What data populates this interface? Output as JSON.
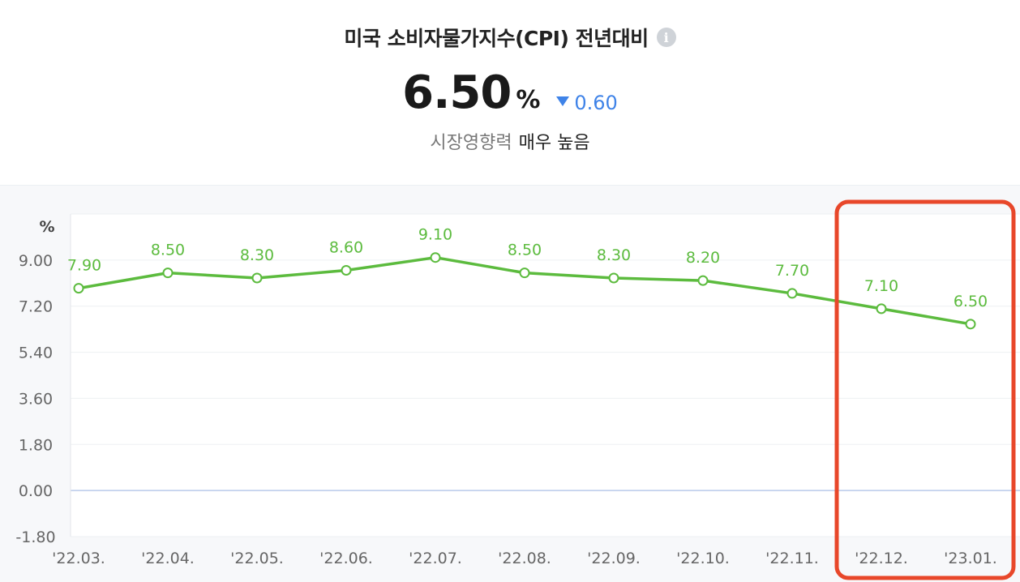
{
  "header": {
    "title": "미국 소비자물가지수(CPI) 전년대비",
    "info_icon": "info-icon",
    "value": "6.50",
    "unit": "%",
    "change": "0.60",
    "change_direction": "down",
    "impact_label": "시장영향력",
    "impact_value": "매우 높음"
  },
  "colors": {
    "line": "#5cbb3e",
    "change": "#3f83e8",
    "highlight_box": "#e8472a"
  },
  "chart_data": {
    "type": "line",
    "title": "",
    "ylabel": "%",
    "xlabel": "",
    "categories": [
      "'22.03.",
      "'22.04.",
      "'22.05.",
      "'22.06.",
      "'22.07.",
      "'22.08.",
      "'22.09.",
      "'22.10.",
      "'22.11.",
      "'22.12.",
      "'23.01."
    ],
    "series": [
      {
        "values": [
          7.9,
          8.5,
          8.3,
          8.6,
          9.1,
          8.5,
          8.3,
          8.2,
          7.7,
          7.1,
          6.5
        ]
      }
    ],
    "data_labels": [
      "7.90",
      "8.50",
      "8.30",
      "8.60",
      "9.10",
      "8.50",
      "8.30",
      "8.20",
      "7.70",
      "7.10",
      "6.50"
    ],
    "y_ticks": [
      9.0,
      7.2,
      5.4,
      3.6,
      1.8,
      0.0,
      -1.8
    ],
    "y_tick_labels": [
      "9.00",
      "7.20",
      "5.40",
      "3.60",
      "1.80",
      "0.00",
      "-1.80"
    ],
    "ylim": [
      -1.8,
      10.8
    ],
    "grid": true,
    "highlight": {
      "categories": [
        "'22.12.",
        "'23.01."
      ]
    }
  }
}
